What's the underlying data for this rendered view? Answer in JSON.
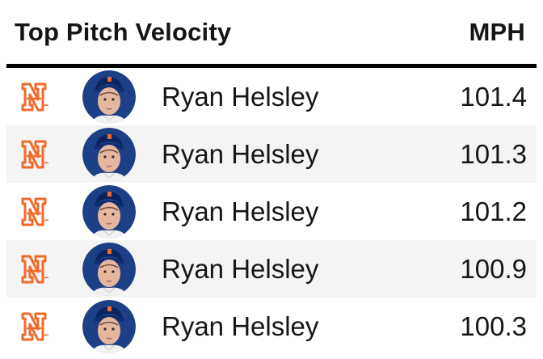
{
  "header": {
    "title": "Top Pitch Velocity",
    "unit": "MPH"
  },
  "colors": {
    "rule": "#000000",
    "alt_row": "#f4f4f4",
    "team_logo": "#f26a2b",
    "avatar_bg": "#1d3f86"
  },
  "rows": [
    {
      "team_icon": "mets-logo-icon",
      "player": "Ryan Helsley",
      "mph": "101.4"
    },
    {
      "team_icon": "mets-logo-icon",
      "player": "Ryan Helsley",
      "mph": "101.3"
    },
    {
      "team_icon": "mets-logo-icon",
      "player": "Ryan Helsley",
      "mph": "101.2"
    },
    {
      "team_icon": "mets-logo-icon",
      "player": "Ryan Helsley",
      "mph": "100.9"
    },
    {
      "team_icon": "mets-logo-icon",
      "player": "Ryan Helsley",
      "mph": "100.3"
    }
  ]
}
